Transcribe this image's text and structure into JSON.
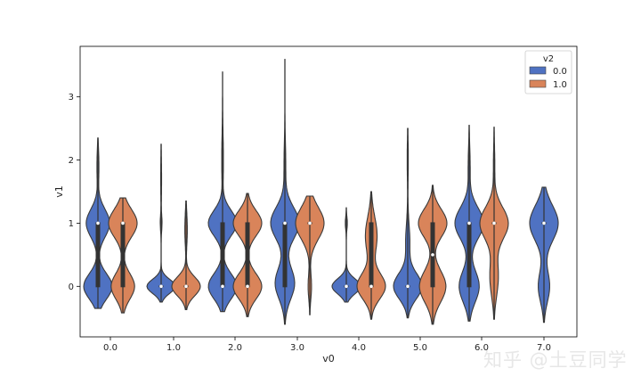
{
  "chart_data": {
    "type": "violin",
    "xlabel": "v0",
    "ylabel": "v1",
    "categories": [
      "0.0",
      "1.0",
      "2.0",
      "3.0",
      "4.0",
      "5.0",
      "6.0",
      "7.0"
    ],
    "yticks": [
      "0",
      "1",
      "2",
      "3"
    ],
    "ylim": [
      -0.8,
      3.8
    ],
    "grid": false,
    "legend": {
      "title": "v2",
      "placement": "top-right",
      "entries": [
        "0.0",
        "1.0"
      ]
    },
    "series": [
      {
        "name": "0.0",
        "color": "#4f72c2",
        "violins": [
          {
            "category": "0.0",
            "min": -0.35,
            "max": 2.35,
            "median": 1.0,
            "q1": 0.0,
            "q3": 1.0,
            "modes": [
              {
                "y": 0.0,
                "w": 0.85,
                "s": 0.2
              },
              {
                "y": 1.0,
                "w": 0.7,
                "s": 0.22
              },
              {
                "y": 1.9,
                "w": 0.06,
                "s": 0.25
              }
            ]
          },
          {
            "category": "1.0",
            "min": -0.25,
            "max": 2.25,
            "median": 0.0,
            "q1": 0.0,
            "q3": 0.0,
            "modes": [
              {
                "y": 0.0,
                "w": 1.0,
                "s": 0.11
              },
              {
                "y": 1.0,
                "w": 0.06,
                "s": 0.12
              },
              {
                "y": 1.7,
                "w": 0.03,
                "s": 0.3
              }
            ]
          },
          {
            "category": "2.0",
            "min": -0.4,
            "max": 3.4,
            "median": 0.0,
            "q1": 0.0,
            "q3": 1.0,
            "modes": [
              {
                "y": 0.0,
                "w": 0.85,
                "s": 0.2
              },
              {
                "y": 1.0,
                "w": 0.85,
                "s": 0.2
              },
              {
                "y": 2.0,
                "w": 0.05,
                "s": 0.4
              }
            ]
          },
          {
            "category": "3.0",
            "min": -0.6,
            "max": 3.6,
            "median": 1.0,
            "q1": 0.0,
            "q3": 1.0,
            "modes": [
              {
                "y": 0.05,
                "w": 0.55,
                "s": 0.25
              },
              {
                "y": 1.0,
                "w": 0.8,
                "s": 0.25
              },
              {
                "y": 1.9,
                "w": 0.05,
                "s": 0.35
              }
            ]
          },
          {
            "category": "4.0",
            "min": -0.25,
            "max": 1.25,
            "median": 0.0,
            "q1": 0.0,
            "q3": 0.0,
            "modes": [
              {
                "y": 0.0,
                "w": 1.0,
                "s": 0.12
              },
              {
                "y": 1.0,
                "w": 0.07,
                "s": 0.1
              }
            ]
          },
          {
            "category": "5.0",
            "min": -0.5,
            "max": 2.5,
            "median": 0.0,
            "q1": 0.0,
            "q3": 0.0,
            "modes": [
              {
                "y": 0.0,
                "w": 1.0,
                "s": 0.2
              },
              {
                "y": 0.7,
                "w": 0.15,
                "s": 0.3
              },
              {
                "y": 2.0,
                "w": 0.04,
                "s": 0.3
              }
            ]
          },
          {
            "category": "6.0",
            "min": -0.55,
            "max": 2.55,
            "median": 1.0,
            "q1": 0.0,
            "q3": 1.0,
            "modes": [
              {
                "y": 0.0,
                "w": 0.6,
                "s": 0.25
              },
              {
                "y": 1.0,
                "w": 0.85,
                "s": 0.25
              },
              {
                "y": 1.9,
                "w": 0.06,
                "s": 0.3
              }
            ]
          }
        ]
      },
      {
        "name": "1.0",
        "color": "#d9845a",
        "violins": [
          {
            "category": "0.0",
            "min": -0.42,
            "max": 1.4,
            "median": 1.0,
            "q1": 0.0,
            "q3": 1.0,
            "modes": [
              {
                "y": 0.0,
                "w": 0.7,
                "s": 0.2
              },
              {
                "y": 1.0,
                "w": 0.85,
                "s": 0.22
              }
            ]
          },
          {
            "category": "1.0",
            "min": -0.37,
            "max": 1.35,
            "median": 0.0,
            "q1": 0.0,
            "q3": 0.0,
            "modes": [
              {
                "y": 0.0,
                "w": 0.9,
                "s": 0.15
              },
              {
                "y": 0.9,
                "w": 0.08,
                "s": 0.25
              }
            ]
          },
          {
            "category": "2.0",
            "min": -0.48,
            "max": 1.47,
            "median": 0.0,
            "q1": 0.0,
            "q3": 1.0,
            "modes": [
              {
                "y": 0.0,
                "w": 0.85,
                "s": 0.2
              },
              {
                "y": 1.0,
                "w": 0.85,
                "s": 0.2
              }
            ]
          },
          {
            "category": "3.0",
            "min": -0.45,
            "max": 1.43,
            "median": 1.0,
            "q1": 1.0,
            "q3": 1.0,
            "modes": [
              {
                "y": 0.0,
                "w": 0.12,
                "s": 0.2
              },
              {
                "y": 1.0,
                "w": 1.0,
                "s": 0.25
              }
            ]
          },
          {
            "category": "4.0",
            "min": -0.52,
            "max": 1.5,
            "median": 0.0,
            "q1": 0.0,
            "q3": 1.0,
            "modes": [
              {
                "y": 0.0,
                "w": 0.6,
                "s": 0.2
              },
              {
                "y": 0.8,
                "w": 0.25,
                "s": 0.3
              }
            ]
          },
          {
            "category": "5.0",
            "min": -0.6,
            "max": 1.6,
            "median": 0.5,
            "q1": 0.0,
            "q3": 1.0,
            "modes": [
              {
                "y": 0.0,
                "w": 0.65,
                "s": 0.25
              },
              {
                "y": 1.0,
                "w": 0.7,
                "s": 0.22
              }
            ]
          },
          {
            "category": "6.0",
            "min": -0.52,
            "max": 2.52,
            "median": 1.0,
            "q1": 1.0,
            "q3": 1.0,
            "modes": [
              {
                "y": 0.15,
                "w": 0.3,
                "s": 0.3
              },
              {
                "y": 1.0,
                "w": 1.0,
                "s": 0.25
              },
              {
                "y": 1.9,
                "w": 0.05,
                "s": 0.3
              }
            ]
          }
        ]
      }
    ],
    "single_violins": [
      {
        "category": "7.0",
        "series": "0.0",
        "min": -0.57,
        "max": 1.57,
        "median": 1.0,
        "q1": 1.0,
        "q3": 1.0,
        "modes": [
          {
            "y": 0.0,
            "w": 0.4,
            "s": 0.25
          },
          {
            "y": 1.0,
            "w": 1.0,
            "s": 0.28
          }
        ]
      }
    ]
  },
  "watermark": "知乎 @土豆同学"
}
